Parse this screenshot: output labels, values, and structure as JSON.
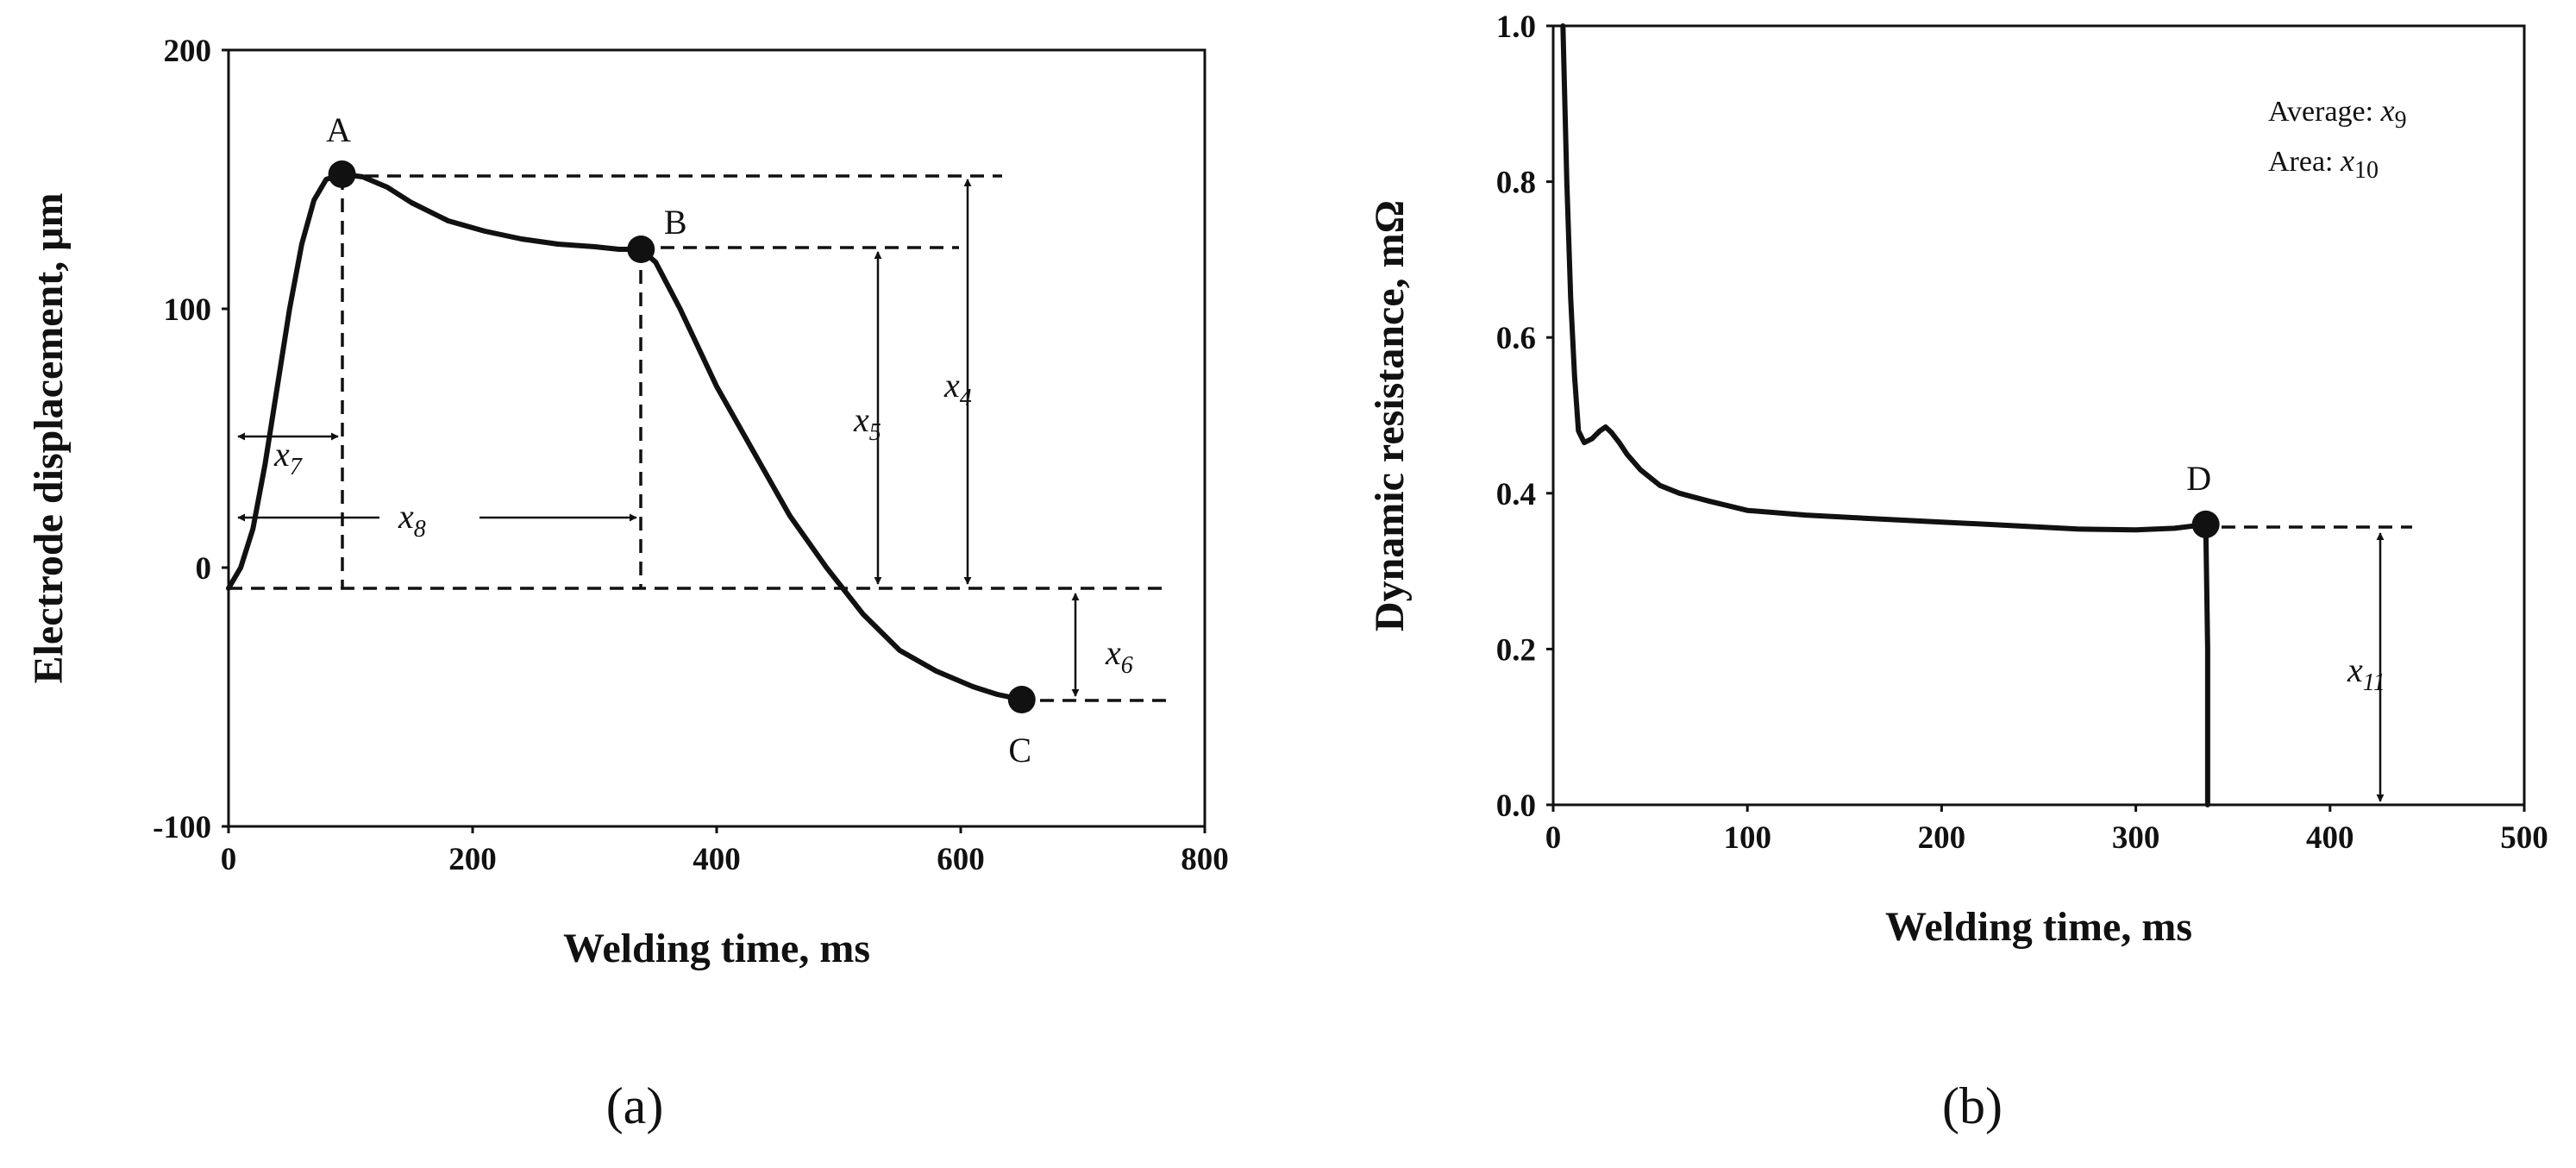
{
  "chart_data": [
    {
      "type": "line",
      "panel_label": "(a)",
      "xlabel": "Welding time, ms",
      "ylabel": "Electrode displacement, μm",
      "xlim": [
        0,
        800
      ],
      "ylim": [
        -100,
        200
      ],
      "xticks": [
        0,
        200,
        400,
        600,
        800
      ],
      "yticks": [
        -100,
        0,
        100,
        200
      ],
      "grid": false,
      "series": [
        {
          "x": [
            0,
            10,
            20,
            30,
            40,
            50,
            60,
            70,
            80,
            93,
            110,
            130,
            150,
            180,
            210,
            240,
            270,
            300,
            320,
            338,
            350,
            370,
            400,
            430,
            460,
            490,
            520,
            550,
            580,
            610,
            630,
            650
          ],
          "y": [
            -8,
            0,
            15,
            40,
            70,
            100,
            125,
            142,
            150,
            152,
            151,
            147,
            141,
            134,
            130,
            127,
            125,
            124,
            123,
            123,
            118,
            100,
            70,
            45,
            20,
            0,
            -18,
            -32,
            -40,
            -46,
            -49,
            -51
          ]
        }
      ],
      "points": [
        {
          "label": "A",
          "x": 93,
          "y": 152
        },
        {
          "label": "B",
          "x": 338,
          "y": 123
        },
        {
          "label": "C",
          "x": 650,
          "y": -51
        }
      ],
      "annotations": [
        {
          "name": "x",
          "sub": "4"
        },
        {
          "name": "x",
          "sub": "5"
        },
        {
          "name": "x",
          "sub": "6"
        },
        {
          "name": "x",
          "sub": "7"
        },
        {
          "name": "x",
          "sub": "8"
        }
      ]
    },
    {
      "type": "line",
      "panel_label": "(b)",
      "xlabel": "Welding time, ms",
      "ylabel": "Dynamic resistance, mΩ",
      "xlim": [
        0,
        500
      ],
      "ylim": [
        0,
        1.0
      ],
      "xticks": [
        0,
        100,
        200,
        300,
        400,
        500
      ],
      "yticks": [
        0.0,
        0.2,
        0.4,
        0.6,
        0.8,
        1.0
      ],
      "ytick_labels": [
        "0.0",
        "0.2",
        "0.4",
        "0.6",
        "0.8",
        "1.0"
      ],
      "grid": false,
      "series": [
        {
          "x": [
            5,
            7,
            9,
            11,
            13,
            16,
            20,
            24,
            27,
            30,
            34,
            38,
            45,
            55,
            65,
            80,
            100,
            130,
            160,
            200,
            240,
            270,
            300,
            320,
            336,
            337,
            337
          ],
          "y": [
            1.0,
            0.8,
            0.65,
            0.55,
            0.48,
            0.465,
            0.47,
            0.48,
            0.485,
            0.478,
            0.465,
            0.45,
            0.43,
            0.41,
            0.4,
            0.39,
            0.378,
            0.372,
            0.368,
            0.363,
            0.358,
            0.354,
            0.353,
            0.355,
            0.36,
            0.2,
            0.0
          ]
        }
      ],
      "points": [
        {
          "label": "D",
          "x": 336,
          "y": 0.36
        }
      ],
      "notes": [
        {
          "text": "Average: ",
          "name": "x",
          "sub": "9"
        },
        {
          "text": "Area: ",
          "name": "x",
          "sub": "10"
        }
      ],
      "annotations": [
        {
          "name": "x",
          "sub": "11"
        }
      ]
    }
  ]
}
